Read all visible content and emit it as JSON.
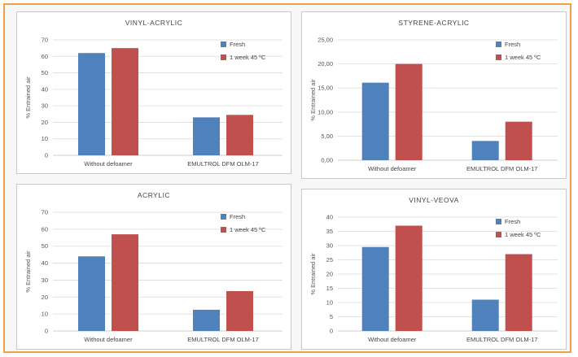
{
  "colors": {
    "fresh": "#4f81bd",
    "aged": "#c0504d"
  },
  "chart_data": [
    {
      "type": "bar",
      "title": "VINYL-ACRYLIC",
      "ylabel": "% Entrained air",
      "categories": [
        "Without defoamer",
        "EMULTROL DFM OLM-17"
      ],
      "yticks": [
        "0",
        "10",
        "20",
        "30",
        "40",
        "50",
        "60",
        "70"
      ],
      "ylim": [
        0,
        70
      ],
      "series": [
        {
          "name": "Fresh",
          "values": [
            62,
            23
          ]
        },
        {
          "name": "1 week 45 ºC",
          "values": [
            65,
            24.5
          ]
        }
      ],
      "legend": "top-right",
      "grid": true
    },
    {
      "type": "bar",
      "title": "STYRENE-ACRYLIC",
      "ylabel": "% Entrained air",
      "categories": [
        "Without defoamer",
        "EMULTROL DFM OLM-17"
      ],
      "yticks": [
        "0,00",
        "5,00",
        "10,00",
        "15,00",
        "20,00",
        "25,00"
      ],
      "ylim": [
        0,
        25
      ],
      "series": [
        {
          "name": "Fresh",
          "values": [
            16.1,
            4
          ]
        },
        {
          "name": "1 week 45 ºC",
          "values": [
            20,
            8
          ]
        }
      ],
      "legend": "top-right",
      "grid": true
    },
    {
      "type": "bar",
      "title": "ACRYLIC",
      "ylabel": "% Entrained air",
      "categories": [
        "Without defoamer",
        "EMULTROL DFM OLM-17"
      ],
      "yticks": [
        "0",
        "10",
        "20",
        "30",
        "40",
        "50",
        "60",
        "70"
      ],
      "ylim": [
        0,
        70
      ],
      "series": [
        {
          "name": "Fresh",
          "values": [
            44,
            12.5
          ]
        },
        {
          "name": "1 week 45 ºC",
          "values": [
            57,
            23.5
          ]
        }
      ],
      "legend": "top-right",
      "grid": true
    },
    {
      "type": "bar",
      "title": "VINYL-VEOVA",
      "ylabel": "% Entrained air",
      "categories": [
        "Without defoamer",
        "EMULTROL DFM OLM-17"
      ],
      "yticks": [
        "0",
        "5",
        "10",
        "15",
        "20",
        "25",
        "30",
        "35",
        "40"
      ],
      "ylim": [
        0,
        40
      ],
      "series": [
        {
          "name": "Fresh",
          "values": [
            29.5,
            11
          ]
        },
        {
          "name": "1 week 45 ºC",
          "values": [
            37,
            27
          ]
        }
      ],
      "legend": "top-right",
      "grid": true
    }
  ]
}
